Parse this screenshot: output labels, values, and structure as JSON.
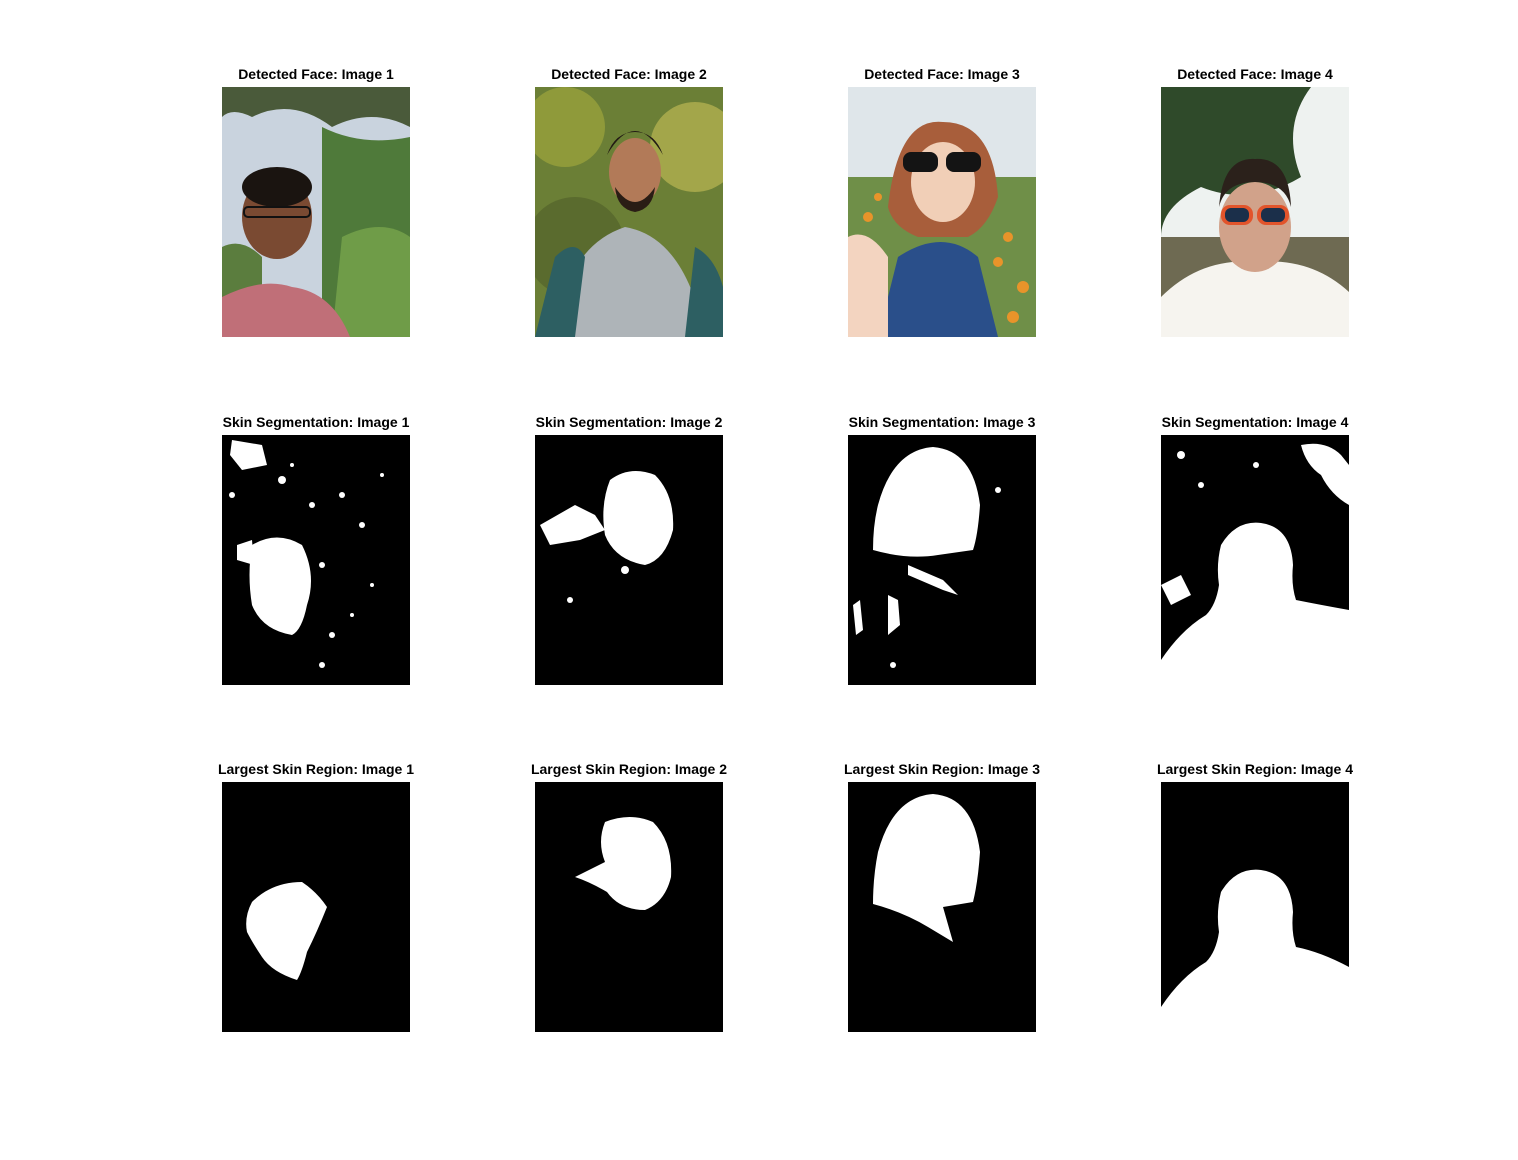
{
  "rows": [
    {
      "kind": "photo",
      "titles": [
        "Detected Face: Image 1",
        "Detected Face: Image 2",
        "Detected Face: Image 3",
        "Detected Face: Image 4"
      ]
    },
    {
      "kind": "mask",
      "titles": [
        "Skin Segmentation: Image 1",
        "Skin Segmentation: Image 2",
        "Skin Segmentation: Image 3",
        "Skin Segmentation: Image 4"
      ]
    },
    {
      "kind": "mask",
      "titles": [
        "Largest Skin Region: Image 1",
        "Largest Skin Region: Image 2",
        "Largest Skin Region: Image 3",
        "Largest Skin Region: Image 4"
      ]
    }
  ],
  "colors": {
    "background": "#ffffff",
    "mask_background": "#000000",
    "mask_foreground": "#ffffff"
  }
}
